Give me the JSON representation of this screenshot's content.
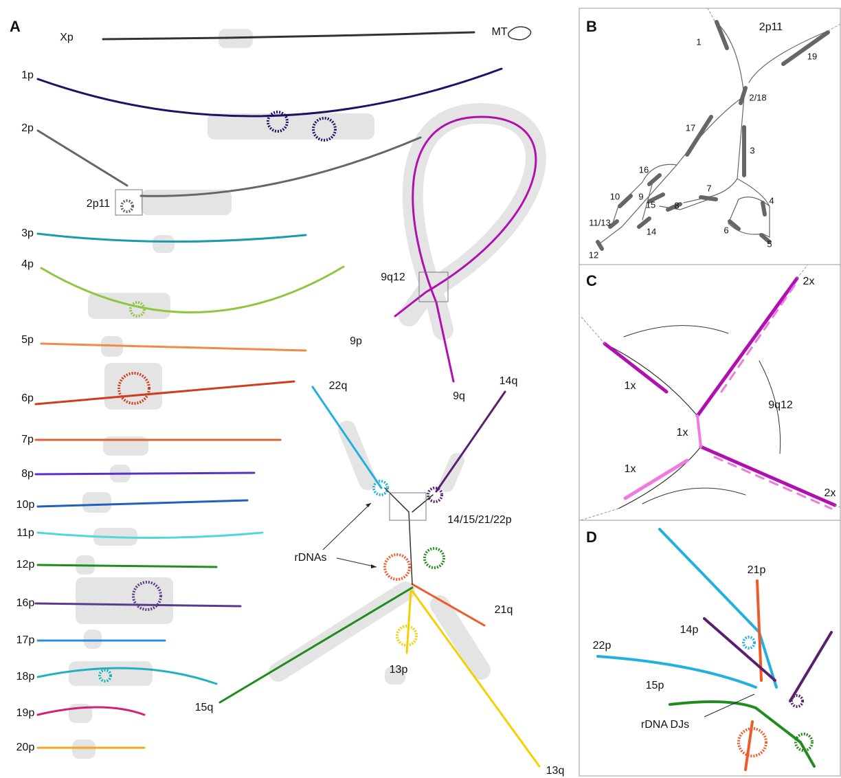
{
  "panels": [
    {
      "letter": "A",
      "labels": [
        "Xp",
        "MT",
        "1p",
        "2p",
        "2p11",
        "3p",
        "4p",
        "5p",
        "6p",
        "7p",
        "8p",
        "10p",
        "11p",
        "12p",
        "16p",
        "17p",
        "18p",
        "19p",
        "20p",
        "9q12",
        "9p",
        "9q",
        "22q",
        "14q",
        "14/15/21/22p",
        "rDNAs",
        "21q",
        "13p",
        "15q",
        "13q"
      ]
    },
    {
      "letter": "B",
      "labels": [
        "2p11",
        "1",
        "19",
        "2/18",
        "17",
        "3",
        "16",
        "10",
        "9",
        "15",
        "8",
        "7",
        "4",
        "11/13",
        "14",
        "6",
        "5",
        "12"
      ]
    },
    {
      "letter": "C",
      "labels": [
        "2x",
        "1x",
        "9q12",
        "1x",
        "1x",
        "2x"
      ]
    },
    {
      "letter": "D",
      "labels": [
        "21p",
        "14p",
        "22p",
        "15p",
        "rDNA DJs"
      ]
    }
  ]
}
